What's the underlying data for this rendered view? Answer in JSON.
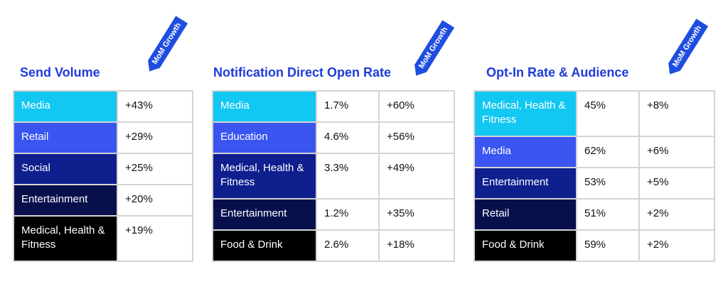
{
  "panels": [
    {
      "title": "Send Volume",
      "badge": "MoM Growth",
      "rows": [
        {
          "category": "Media",
          "growth": "+43%",
          "color": "#12c7f2"
        },
        {
          "category": "Retail",
          "growth": "+29%",
          "color": "#3a55f0"
        },
        {
          "category": "Social",
          "growth": "+25%",
          "color": "#0f1f8e"
        },
        {
          "category": "Entertainment",
          "growth": "+20%",
          "color": "#08104c"
        },
        {
          "category": "Medical, Health & Fitness",
          "growth": "+19%",
          "color": "#000000"
        }
      ]
    },
    {
      "title": "Notification Direct Open Rate",
      "badge": "MoM Growth",
      "rows": [
        {
          "category": "Media",
          "rate": "1.7%",
          "growth": "+60%",
          "color": "#12c7f2"
        },
        {
          "category": "Education",
          "rate": "4.6%",
          "growth": "+56%",
          "color": "#3a55f0"
        },
        {
          "category": "Medical, Health & Fitness",
          "rate": "3.3%",
          "growth": "+49%",
          "color": "#0f1f8e"
        },
        {
          "category": "Entertainment",
          "rate": "1.2%",
          "growth": "+35%",
          "color": "#08104c"
        },
        {
          "category": "Food & Drink",
          "rate": "2.6%",
          "growth": "+18%",
          "color": "#000000"
        }
      ]
    },
    {
      "title": "Opt-In Rate & Audience",
      "badge": "MoM Growth",
      "rows": [
        {
          "category": "Medical, Health & Fitness",
          "rate": "45%",
          "growth": "+8%",
          "color": "#12c7f2"
        },
        {
          "category": "Media",
          "rate": "62%",
          "growth": "+6%",
          "color": "#3a55f0"
        },
        {
          "category": "Entertainment",
          "rate": "53%",
          "growth": "+5%",
          "color": "#0f1f8e"
        },
        {
          "category": "Retail",
          "rate": "51%",
          "growth": "+2%",
          "color": "#08104c"
        },
        {
          "category": "Food & Drink",
          "rate": "59%",
          "growth": "+2%",
          "color": "#000000"
        }
      ]
    }
  ]
}
